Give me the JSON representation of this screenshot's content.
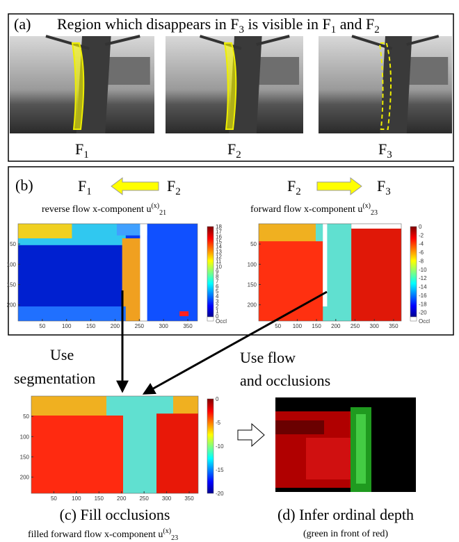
{
  "panel_a": {
    "label": "(a)",
    "title": [
      "Region which disappears in F",
      "3",
      " is visible in F",
      "1",
      " and F",
      "2"
    ],
    "frames": [
      [
        "F",
        "1"
      ],
      [
        "F",
        "2"
      ],
      [
        "F",
        "3"
      ]
    ]
  },
  "panel_b": {
    "label": "(b)",
    "left": {
      "from": [
        "F",
        "1"
      ],
      "to": [
        "F",
        "2"
      ],
      "caption": [
        "reverse flow x-component u",
        "(x)",
        "21"
      ],
      "xticks": [
        50,
        100,
        150,
        200,
        250,
        300,
        350
      ],
      "yticks": [
        50,
        100,
        150,
        200
      ],
      "colorbar": [
        "18",
        "17",
        "16",
        "15",
        "14",
        "13",
        "12",
        "11",
        "10",
        "9",
        "8",
        "7",
        "6",
        "5",
        "4",
        "3",
        "2",
        "1",
        "0",
        "Occl"
      ]
    },
    "right": {
      "from": [
        "F",
        "2"
      ],
      "to": [
        "F",
        "3"
      ],
      "caption": [
        "forward flow x-component u",
        "(x)",
        "23"
      ],
      "xticks": [
        50,
        100,
        150,
        200,
        250,
        300,
        350
      ],
      "yticks": [
        50,
        100,
        150,
        200
      ],
      "colorbar": [
        "0",
        "-2",
        "-4",
        "-6",
        "-8",
        "-10",
        "-12",
        "-14",
        "-16",
        "-18",
        "-20",
        "Occl"
      ]
    }
  },
  "arrows": {
    "segmentation": [
      "Use",
      "segmentation"
    ],
    "flow": [
      "Use flow",
      "and occlusions"
    ]
  },
  "panel_c": {
    "caption": "(c) Fill occlusions",
    "subtitle": [
      "filled forward flow x-component u",
      "(x)",
      "23"
    ],
    "xticks": [
      50,
      100,
      150,
      200,
      250,
      300,
      350
    ],
    "yticks": [
      50,
      100,
      150,
      200
    ],
    "colorbar": [
      "0",
      "-5",
      "-10",
      "-15",
      "-20"
    ]
  },
  "panel_d": {
    "caption": "(d) Infer ordinal depth",
    "subtitle": "(green in front of red)"
  }
}
